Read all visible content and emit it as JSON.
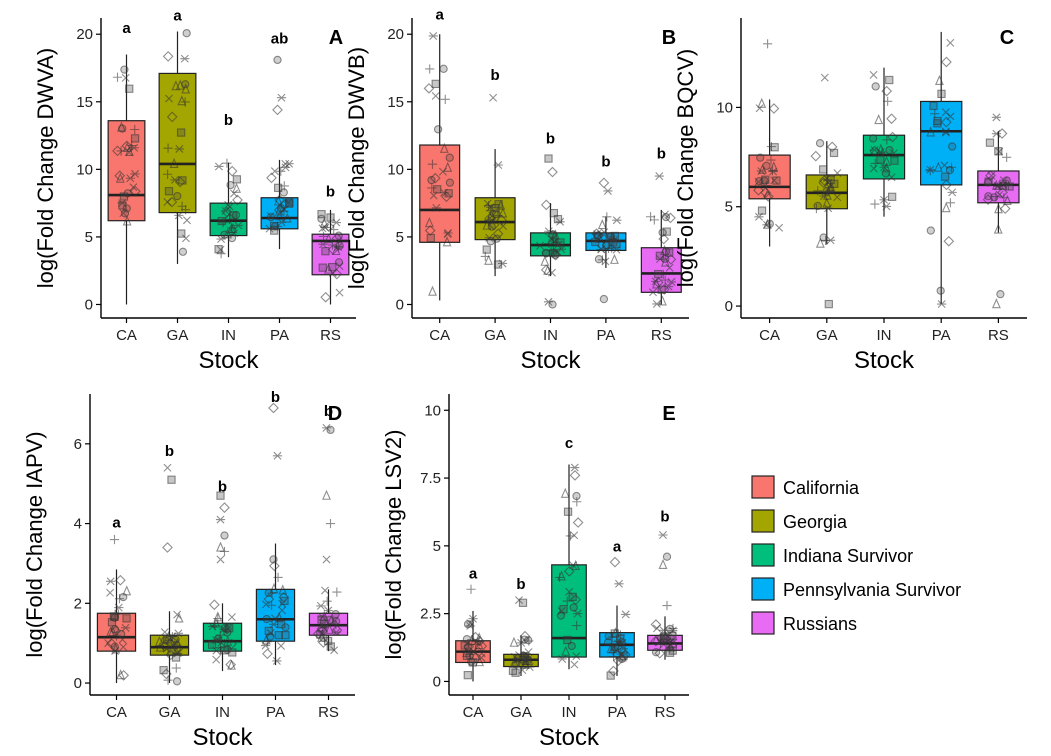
{
  "figure": {
    "group_colors": {
      "CA": "#F8766D",
      "GA": "#A3A500",
      "IN": "#00BF7D",
      "PA": "#00B0F6",
      "RS": "#E76BF3"
    },
    "legend": [
      {
        "key": "CA",
        "label": "California"
      },
      {
        "key": "GA",
        "label": "Georgia"
      },
      {
        "key": "IN",
        "label": "Indiana Survivor"
      },
      {
        "key": "PA",
        "label": "Pennsylvania Survivor"
      },
      {
        "key": "RS",
        "label": "Russians"
      }
    ]
  },
  "chart_data": [
    {
      "panel": "A",
      "type": "box",
      "ylabel": "log(Fold Change DWVA)",
      "xlabel": "Stock",
      "categories": [
        "CA",
        "GA",
        "IN",
        "PA",
        "RS"
      ],
      "ylim": [
        -1,
        21.2
      ],
      "yticks": [
        0,
        5,
        10,
        15,
        20
      ],
      "boxes": [
        {
          "q1": 6.2,
          "median": 8.1,
          "q3": 13.6,
          "min": 0,
          "max": 18.5
        },
        {
          "q1": 6.8,
          "median": 10.4,
          "q3": 17.1,
          "min": 3.0,
          "max": 20.2
        },
        {
          "q1": 5.1,
          "median": 6.2,
          "q3": 7.5,
          "min": 3.5,
          "max": 10.5
        },
        {
          "q1": 5.6,
          "median": 6.4,
          "q3": 7.9,
          "min": 4.1,
          "max": 10.7
        },
        {
          "q1": 2.2,
          "median": 4.7,
          "q3": 5.2,
          "min": 0,
          "max": 7.0
        }
      ],
      "outliers": [
        [],
        [],
        [],
        [
          14.4,
          15.3,
          18.1
        ],
        []
      ],
      "letters": [
        "a",
        "a",
        "b",
        "ab",
        "b"
      ],
      "letter_y": [
        20.1,
        21.0,
        13.3,
        19.3,
        8.0
      ]
    },
    {
      "panel": "B",
      "type": "box",
      "ylabel": "log(Fold Change DWVB)",
      "xlabel": "Stock",
      "categories": [
        "CA",
        "GA",
        "IN",
        "PA",
        "RS"
      ],
      "ylim": [
        -1,
        21.2
      ],
      "yticks": [
        0,
        5,
        10,
        15,
        20
      ],
      "boxes": [
        {
          "q1": 4.6,
          "median": 7.0,
          "q3": 11.8,
          "min": 0.3,
          "max": 20.0
        },
        {
          "q1": 4.8,
          "median": 6.1,
          "q3": 7.9,
          "min": 2.1,
          "max": 11.5
        },
        {
          "q1": 3.6,
          "median": 4.4,
          "q3": 5.3,
          "min": 2.1,
          "max": 7.5
        },
        {
          "q1": 4.0,
          "median": 4.7,
          "q3": 5.3,
          "min": 2.7,
          "max": 6.5
        },
        {
          "q1": 0.9,
          "median": 2.3,
          "q3": 4.2,
          "min": 0,
          "max": 7.0
        }
      ],
      "outliers": [
        [],
        [
          15.3
        ],
        [
          10.8,
          9.8,
          0.2,
          0
        ],
        [
          9.0,
          8.4,
          0.4
        ],
        [
          9.5
        ]
      ],
      "letters": [
        "a",
        "b",
        "b",
        "b",
        "b"
      ],
      "letter_y": [
        21.1,
        16.6,
        11.9,
        10.2,
        10.8
      ]
    },
    {
      "panel": "C",
      "type": "box",
      "ylabel": "log(Fold Change BQCV)",
      "xlabel": "Stock",
      "categories": [
        "CA",
        "GA",
        "IN",
        "PA",
        "RS"
      ],
      "ylim": [
        -0.6,
        14.5
      ],
      "yticks": [
        0,
        5,
        10
      ],
      "boxes": [
        {
          "q1": 5.4,
          "median": 6.0,
          "q3": 7.6,
          "min": 3.0,
          "max": 10.4
        },
        {
          "q1": 4.9,
          "median": 5.7,
          "q3": 6.6,
          "min": 3.1,
          "max": 8.3
        },
        {
          "q1": 6.4,
          "median": 7.6,
          "q3": 8.6,
          "min": 4.5,
          "max": 12.0
        },
        {
          "q1": 6.1,
          "median": 8.8,
          "q3": 10.3,
          "min": 0.1,
          "max": 13.8
        },
        {
          "q1": 5.2,
          "median": 6.1,
          "q3": 6.8,
          "min": 3.7,
          "max": 8.8
        }
      ],
      "outliers": [
        [
          13.2
        ],
        [
          11.5,
          0.1
        ],
        [],
        [],
        [
          9.5,
          0.6,
          0.1
        ]
      ],
      "letters": [],
      "letter_y": []
    },
    {
      "panel": "D",
      "type": "box",
      "ylabel": "log(Fold Change IAPV)",
      "xlabel": "Stock",
      "categories": [
        "CA",
        "GA",
        "IN",
        "PA",
        "RS"
      ],
      "ylim": [
        -0.3,
        7.25
      ],
      "yticks": [
        0,
        2,
        4,
        6
      ],
      "boxes": [
        {
          "q1": 0.8,
          "median": 1.15,
          "q3": 1.75,
          "min": 0,
          "max": 2.85
        },
        {
          "q1": 0.7,
          "median": 0.9,
          "q3": 1.2,
          "min": 0,
          "max": 1.8
        },
        {
          "q1": 0.8,
          "median": 1.05,
          "q3": 1.5,
          "min": 0.3,
          "max": 2.0
        },
        {
          "q1": 1.05,
          "median": 1.6,
          "q3": 2.35,
          "min": 0.45,
          "max": 3.5
        },
        {
          "q1": 1.2,
          "median": 1.45,
          "q3": 1.75,
          "min": 0.8,
          "max": 2.35
        }
      ],
      "outliers": [
        [
          3.6
        ],
        [
          5.4,
          5.1,
          3.4
        ],
        [
          4.7,
          4.4,
          4.1,
          3.7,
          3.4,
          3.3,
          3.1
        ],
        [
          6.9,
          5.7,
          3.1
        ],
        [
          6.4,
          6.35,
          4.7,
          4.0,
          3.1
        ]
      ],
      "letters": [
        "a",
        "b",
        "b",
        "b",
        "b"
      ],
      "letter_y": [
        3.9,
        5.7,
        4.8,
        7.05,
        6.7
      ],
      "panel_label_pos": "top-right"
    },
    {
      "panel": "E",
      "type": "box",
      "ylabel": "log(Fold Change LSV2)",
      "xlabel": "Stock",
      "categories": [
        "CA",
        "GA",
        "IN",
        "PA",
        "RS"
      ],
      "ylim": [
        -0.5,
        10.6
      ],
      "yticks": [
        0,
        2.5,
        5,
        7.5,
        10
      ],
      "ytick_labels": [
        "0",
        "2.5",
        "5",
        "7.5",
        "10"
      ],
      "boxes": [
        {
          "q1": 0.7,
          "median": 1.1,
          "q3": 1.5,
          "min": 0,
          "max": 2.6
        },
        {
          "q1": 0.55,
          "median": 0.8,
          "q3": 1.0,
          "min": 0.2,
          "max": 1.7
        },
        {
          "q1": 0.9,
          "median": 1.6,
          "q3": 4.3,
          "min": 0.45,
          "max": 8.0
        },
        {
          "q1": 0.9,
          "median": 1.35,
          "q3": 1.8,
          "min": 0.2,
          "max": 2.8
        },
        {
          "q1": 1.15,
          "median": 1.4,
          "q3": 1.7,
          "min": 0.8,
          "max": 2.4
        }
      ],
      "outliers": [
        [
          3.4
        ],
        [
          3.0,
          2.9
        ],
        [],
        [
          4.4,
          3.6
        ],
        [
          5.4,
          4.6,
          4.3,
          2.8
        ]
      ],
      "letters": [
        "a",
        "b",
        "c",
        "a",
        "b"
      ],
      "letter_y": [
        3.8,
        3.4,
        8.6,
        4.8,
        5.9
      ]
    }
  ]
}
